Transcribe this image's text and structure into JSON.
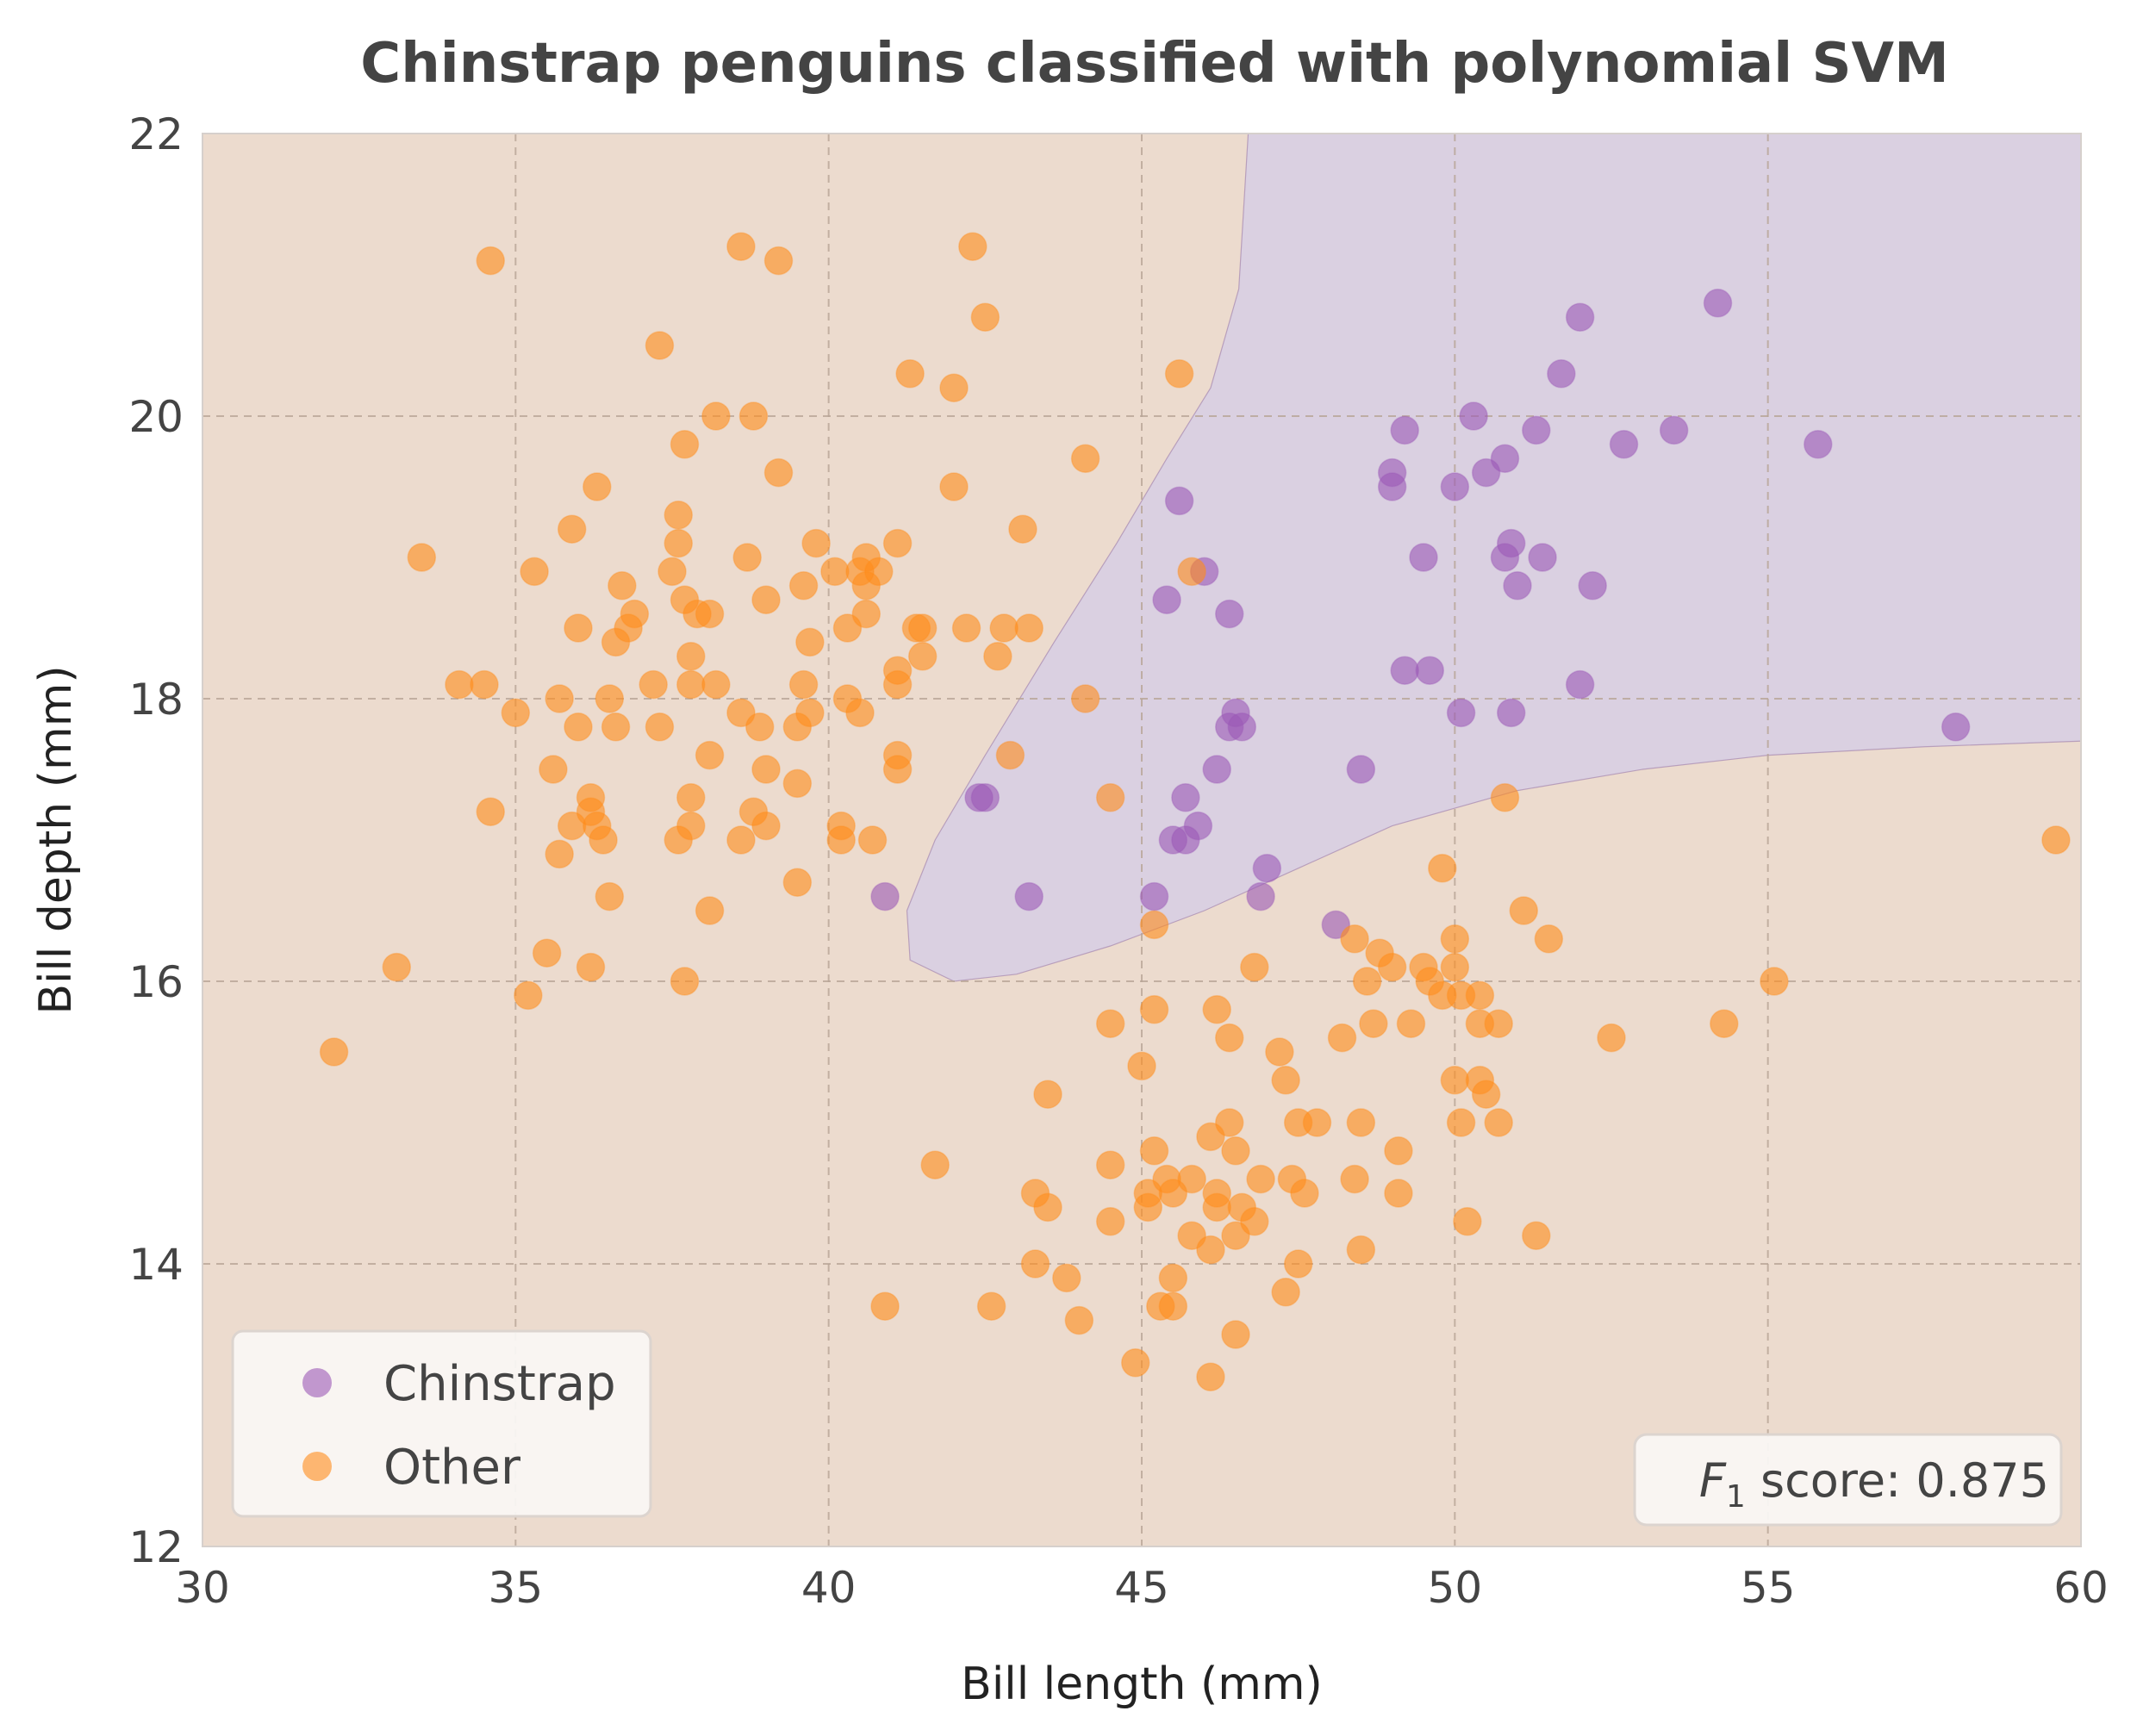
{
  "chart_data": {
    "type": "scatter",
    "title": "Chinstrap penguins classified with polynomial SVM",
    "xlabel": "Bill length (mm)",
    "ylabel": "Bill depth (mm)",
    "xlim": [
      30,
      60
    ],
    "ylim": [
      12,
      22
    ],
    "xticks": [
      "30",
      "35",
      "40",
      "45",
      "50",
      "55",
      "60"
    ],
    "yticks": [
      "12",
      "14",
      "16",
      "18",
      "20",
      "22"
    ],
    "grid": true,
    "legend_position": "lower-left",
    "colors": {
      "chinstrap": "#9b59b6",
      "other": "#ff8c1a",
      "region_chinstrap": "#dad0e1",
      "region_other": "#ecdbce"
    },
    "annotation": {
      "symbol": "F",
      "subscript": "1",
      "text": " score: 0.875"
    },
    "decision_boundary_chinstrap_region": [
      [
        46.7,
        22.0
      ],
      [
        46.55,
        20.9
      ],
      [
        46.1,
        20.2
      ],
      [
        45.4,
        19.7
      ],
      [
        44.6,
        19.1
      ],
      [
        43.6,
        18.4
      ],
      [
        42.5,
        17.6
      ],
      [
        41.7,
        17.0
      ],
      [
        41.25,
        16.5
      ],
      [
        41.3,
        16.15
      ],
      [
        42.0,
        16.0
      ],
      [
        43.0,
        16.05
      ],
      [
        44.5,
        16.25
      ],
      [
        46.0,
        16.5
      ],
      [
        47.5,
        16.8
      ],
      [
        49.0,
        17.1
      ],
      [
        51.0,
        17.35
      ],
      [
        53.0,
        17.5
      ],
      [
        55.0,
        17.6
      ],
      [
        57.5,
        17.66
      ],
      [
        60.0,
        17.7
      ],
      [
        60.0,
        22.0
      ]
    ],
    "series": [
      {
        "name": "Chinstrap",
        "points": [
          [
            54.2,
            20.8
          ],
          [
            52.0,
            20.7
          ],
          [
            51.7,
            20.3
          ],
          [
            50.3,
            20.0
          ],
          [
            49.2,
            19.9
          ],
          [
            51.3,
            19.9
          ],
          [
            53.5,
            19.9
          ],
          [
            52.7,
            19.8
          ],
          [
            55.8,
            19.8
          ],
          [
            50.8,
            19.7
          ],
          [
            49.0,
            19.6
          ],
          [
            50.5,
            19.6
          ],
          [
            49.0,
            19.5
          ],
          [
            50.0,
            19.5
          ],
          [
            45.6,
            19.4
          ],
          [
            49.5,
            19.0
          ],
          [
            50.8,
            19.0
          ],
          [
            50.9,
            19.1
          ],
          [
            51.4,
            19.0
          ],
          [
            46.0,
            18.9
          ],
          [
            45.4,
            18.7
          ],
          [
            51.0,
            18.8
          ],
          [
            52.2,
            18.8
          ],
          [
            46.4,
            18.6
          ],
          [
            49.2,
            18.2
          ],
          [
            49.6,
            18.2
          ],
          [
            52.0,
            18.1
          ],
          [
            50.1,
            17.9
          ],
          [
            50.9,
            17.9
          ],
          [
            46.5,
            17.9
          ],
          [
            46.4,
            17.8
          ],
          [
            46.6,
            17.8
          ],
          [
            58.0,
            17.8
          ],
          [
            46.2,
            17.5
          ],
          [
            48.5,
            17.5
          ],
          [
            42.4,
            17.3
          ],
          [
            42.5,
            17.3
          ],
          [
            45.7,
            17.3
          ],
          [
            45.9,
            17.1
          ],
          [
            45.5,
            17.0
          ],
          [
            45.7,
            17.0
          ],
          [
            47.0,
            16.8
          ],
          [
            40.9,
            16.6
          ],
          [
            43.2,
            16.6
          ],
          [
            45.2,
            16.6
          ],
          [
            46.9,
            16.6
          ],
          [
            48.1,
            16.4
          ]
        ]
      },
      {
        "name": "Other",
        "points": [
          [
            34.6,
            21.1
          ],
          [
            38.6,
            21.2
          ],
          [
            39.2,
            21.1
          ],
          [
            42.3,
            21.2
          ],
          [
            42.5,
            20.7
          ],
          [
            37.3,
            20.5
          ],
          [
            41.3,
            20.3
          ],
          [
            45.6,
            20.3
          ],
          [
            42.0,
            20.2
          ],
          [
            38.2,
            20.0
          ],
          [
            38.8,
            20.0
          ],
          [
            37.7,
            19.8
          ],
          [
            44.1,
            19.7
          ],
          [
            39.2,
            19.6
          ],
          [
            36.3,
            19.5
          ],
          [
            42.0,
            19.5
          ],
          [
            37.6,
            19.3
          ],
          [
            35.9,
            19.2
          ],
          [
            43.1,
            19.2
          ],
          [
            37.6,
            19.1
          ],
          [
            39.8,
            19.1
          ],
          [
            41.1,
            19.1
          ],
          [
            33.5,
            19.0
          ],
          [
            38.7,
            19.0
          ],
          [
            40.6,
            19.0
          ],
          [
            35.3,
            18.9
          ],
          [
            37.5,
            18.9
          ],
          [
            40.1,
            18.9
          ],
          [
            40.5,
            18.9
          ],
          [
            40.8,
            18.9
          ],
          [
            45.8,
            18.9
          ],
          [
            36.7,
            18.8
          ],
          [
            39.6,
            18.8
          ],
          [
            40.6,
            18.8
          ],
          [
            37.7,
            18.7
          ],
          [
            39.0,
            18.7
          ],
          [
            36.9,
            18.6
          ],
          [
            37.9,
            18.6
          ],
          [
            38.1,
            18.6
          ],
          [
            40.6,
            18.6
          ],
          [
            36.8,
            18.5
          ],
          [
            36.0,
            18.5
          ],
          [
            40.3,
            18.5
          ],
          [
            41.4,
            18.5
          ],
          [
            41.5,
            18.5
          ],
          [
            42.2,
            18.5
          ],
          [
            42.8,
            18.5
          ],
          [
            43.2,
            18.5
          ],
          [
            36.6,
            18.4
          ],
          [
            39.7,
            18.4
          ],
          [
            37.8,
            18.3
          ],
          [
            41.5,
            18.3
          ],
          [
            42.7,
            18.3
          ],
          [
            41.1,
            18.2
          ],
          [
            34.1,
            18.1
          ],
          [
            34.5,
            18.1
          ],
          [
            37.2,
            18.1
          ],
          [
            37.8,
            18.1
          ],
          [
            38.2,
            18.1
          ],
          [
            39.6,
            18.1
          ],
          [
            41.1,
            18.1
          ],
          [
            35.7,
            18.0
          ],
          [
            36.5,
            18.0
          ],
          [
            40.3,
            18.0
          ],
          [
            44.1,
            18.0
          ],
          [
            35.0,
            17.9
          ],
          [
            38.6,
            17.9
          ],
          [
            39.7,
            17.9
          ],
          [
            40.5,
            17.9
          ],
          [
            36.0,
            17.8
          ],
          [
            36.6,
            17.8
          ],
          [
            37.3,
            17.8
          ],
          [
            38.9,
            17.8
          ],
          [
            39.5,
            17.8
          ],
          [
            38.1,
            17.6
          ],
          [
            41.1,
            17.6
          ],
          [
            42.9,
            17.6
          ],
          [
            35.6,
            17.5
          ],
          [
            39.0,
            17.5
          ],
          [
            41.1,
            17.5
          ],
          [
            39.5,
            17.4
          ],
          [
            36.2,
            17.3
          ],
          [
            37.8,
            17.3
          ],
          [
            44.5,
            17.3
          ],
          [
            50.8,
            17.3
          ],
          [
            34.6,
            17.2
          ],
          [
            36.2,
            17.2
          ],
          [
            38.8,
            17.2
          ],
          [
            35.9,
            17.1
          ],
          [
            36.3,
            17.1
          ],
          [
            37.8,
            17.1
          ],
          [
            39.0,
            17.1
          ],
          [
            40.2,
            17.1
          ],
          [
            36.4,
            17.0
          ],
          [
            37.6,
            17.0
          ],
          [
            38.6,
            17.0
          ],
          [
            40.2,
            17.0
          ],
          [
            40.7,
            17.0
          ],
          [
            59.6,
            17.0
          ],
          [
            35.7,
            16.9
          ],
          [
            49.8,
            16.8
          ],
          [
            39.5,
            16.7
          ],
          [
            36.5,
            16.6
          ],
          [
            38.1,
            16.5
          ],
          [
            51.1,
            16.5
          ],
          [
            45.2,
            16.4
          ],
          [
            48.4,
            16.3
          ],
          [
            50.0,
            16.3
          ],
          [
            51.5,
            16.3
          ],
          [
            35.5,
            16.2
          ],
          [
            48.8,
            16.2
          ],
          [
            33.1,
            16.1
          ],
          [
            36.2,
            16.1
          ],
          [
            46.8,
            16.1
          ],
          [
            49.0,
            16.1
          ],
          [
            49.5,
            16.1
          ],
          [
            50.0,
            16.1
          ],
          [
            37.7,
            16.0
          ],
          [
            48.6,
            16.0
          ],
          [
            49.6,
            16.0
          ],
          [
            55.1,
            16.0
          ],
          [
            35.2,
            15.9
          ],
          [
            49.8,
            15.9
          ],
          [
            50.1,
            15.9
          ],
          [
            50.4,
            15.9
          ],
          [
            45.2,
            15.8
          ],
          [
            46.2,
            15.8
          ],
          [
            44.5,
            15.7
          ],
          [
            48.7,
            15.7
          ],
          [
            49.3,
            15.7
          ],
          [
            50.4,
            15.7
          ],
          [
            50.7,
            15.7
          ],
          [
            54.3,
            15.7
          ],
          [
            46.4,
            15.6
          ],
          [
            48.2,
            15.6
          ],
          [
            52.5,
            15.6
          ],
          [
            32.1,
            15.5
          ],
          [
            47.2,
            15.5
          ],
          [
            45.0,
            15.4
          ],
          [
            47.3,
            15.3
          ],
          [
            50.0,
            15.3
          ],
          [
            50.4,
            15.3
          ],
          [
            50.5,
            15.2
          ],
          [
            43.5,
            15.2
          ],
          [
            46.4,
            15.0
          ],
          [
            47.5,
            15.0
          ],
          [
            47.8,
            15.0
          ],
          [
            48.5,
            15.0
          ],
          [
            50.1,
            15.0
          ],
          [
            50.7,
            15.0
          ],
          [
            46.1,
            14.9
          ],
          [
            45.2,
            14.8
          ],
          [
            46.5,
            14.8
          ],
          [
            49.1,
            14.8
          ],
          [
            41.7,
            14.7
          ],
          [
            44.5,
            14.7
          ],
          [
            45.8,
            14.6
          ],
          [
            45.4,
            14.6
          ],
          [
            46.9,
            14.6
          ],
          [
            47.4,
            14.6
          ],
          [
            48.4,
            14.6
          ],
          [
            43.3,
            14.5
          ],
          [
            45.1,
            14.5
          ],
          [
            45.5,
            14.5
          ],
          [
            46.2,
            14.5
          ],
          [
            47.6,
            14.5
          ],
          [
            49.1,
            14.5
          ],
          [
            43.5,
            14.4
          ],
          [
            45.1,
            14.4
          ],
          [
            46.2,
            14.4
          ],
          [
            46.6,
            14.4
          ],
          [
            44.5,
            14.3
          ],
          [
            46.8,
            14.3
          ],
          [
            50.2,
            14.3
          ],
          [
            45.8,
            14.2
          ],
          [
            46.5,
            14.2
          ],
          [
            51.3,
            14.2
          ],
          [
            46.1,
            14.1
          ],
          [
            48.5,
            14.1
          ],
          [
            43.3,
            14.0
          ],
          [
            47.5,
            14.0
          ],
          [
            43.8,
            13.9
          ],
          [
            45.5,
            13.9
          ],
          [
            47.3,
            13.8
          ],
          [
            40.9,
            13.7
          ],
          [
            42.6,
            13.7
          ],
          [
            45.3,
            13.7
          ],
          [
            45.5,
            13.7
          ],
          [
            44.0,
            13.6
          ],
          [
            46.5,
            13.5
          ],
          [
            44.9,
            13.3
          ],
          [
            46.1,
            13.2
          ]
        ]
      }
    ]
  }
}
